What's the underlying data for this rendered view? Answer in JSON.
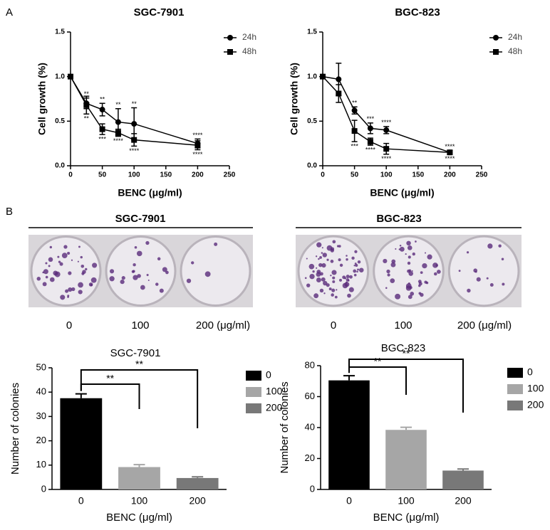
{
  "panels": [
    "A",
    "B"
  ],
  "photos": [
    {
      "title": "SGC-7901",
      "labels": [
        "0",
        "100",
        "200 (μg/ml)"
      ]
    },
    {
      "title": "BGC-823",
      "labels": [
        "0",
        "100",
        "200 (μg/ml)"
      ]
    }
  ],
  "chart_data": [
    {
      "type": "line",
      "title": "SGC-7901",
      "x_label": "BENC (μg/ml)",
      "y_label": "Cell growth (%)",
      "x": [
        0,
        25,
        50,
        75,
        100,
        200
      ],
      "series": [
        {
          "name": "24h",
          "color": "#000000",
          "marker": "circle",
          "values": [
            1.0,
            0.7,
            0.63,
            0.49,
            0.47,
            0.25
          ],
          "errors": [
            0,
            0.06,
            0.07,
            0.15,
            0.18,
            0.05
          ],
          "annotations": [
            null,
            "**",
            "**",
            "**",
            "**",
            "****"
          ]
        },
        {
          "name": "48h",
          "color": "#000000",
          "marker": "square",
          "values": [
            1.0,
            0.68,
            0.41,
            0.37,
            0.29,
            0.23
          ],
          "errors": [
            0,
            0.1,
            0.06,
            0.04,
            0.07,
            0.05
          ],
          "annotations": [
            null,
            "**",
            "***",
            "****",
            "****",
            "****"
          ]
        }
      ],
      "xlim": [
        0,
        250
      ],
      "xticks": [
        0,
        50,
        100,
        150,
        200,
        250
      ],
      "ylim": [
        0,
        1.5
      ],
      "yticks": [
        {
          "value": 0,
          "label": "0.0"
        },
        0.5,
        {
          "value": 1,
          "label": "1.0"
        },
        1.5
      ],
      "legend": "top-right"
    },
    {
      "type": "line",
      "title": "BGC-823",
      "x_label": "BENC (μg/ml)",
      "y_label": "Cell growth (%)",
      "x": [
        0,
        25,
        50,
        75,
        100,
        200
      ],
      "series": [
        {
          "name": "24h",
          "color": "#000000",
          "marker": "circle",
          "values": [
            1.0,
            0.97,
            0.62,
            0.42,
            0.4,
            0.15
          ],
          "errors": [
            0,
            0.18,
            0.04,
            0.06,
            0.04,
            0.02
          ],
          "annotations": [
            null,
            null,
            "**",
            "***",
            "****",
            "****"
          ]
        },
        {
          "name": "48h",
          "color": "#000000",
          "marker": "square",
          "values": [
            1.0,
            0.81,
            0.39,
            0.27,
            0.19,
            0.15
          ],
          "errors": [
            0,
            0.1,
            0.12,
            0.04,
            0.06,
            0.02
          ],
          "annotations": [
            null,
            null,
            "***",
            "****",
            "****",
            "****"
          ]
        }
      ],
      "xlim": [
        0,
        250
      ],
      "xticks": [
        0,
        50,
        100,
        150,
        200,
        250
      ],
      "ylim": [
        0,
        1.5
      ],
      "yticks": [
        {
          "value": 0,
          "label": "0.0"
        },
        0.5,
        {
          "value": 1,
          "label": "1.0"
        },
        1.5
      ],
      "legend": "top-right"
    },
    {
      "type": "bar",
      "title": "SGC-7901",
      "x_label": "BENC (μg/ml)",
      "y_label": "Number of colonies",
      "categories": [
        "0",
        "100",
        "200"
      ],
      "values": [
        37.5,
        9.2,
        4.7
      ],
      "errors": [
        1.8,
        1.0,
        0.5
      ],
      "colors": [
        "#000000",
        "#a6a6a6",
        "#787878"
      ],
      "significance_labels": [
        "**",
        "**"
      ],
      "ylim": [
        0,
        50
      ],
      "yticks": [
        0,
        10,
        20,
        30,
        40,
        50
      ],
      "legend": "right"
    },
    {
      "type": "bar",
      "title": "BGC-823",
      "x_label": "BENC (μg/ml)",
      "y_label": "Number of colonies",
      "categories": [
        "0",
        "100",
        "200"
      ],
      "values": [
        70.5,
        38.5,
        12.2
      ],
      "errors": [
        3.0,
        1.7,
        1.0
      ],
      "colors": [
        "#000000",
        "#a6a6a6",
        "#787878"
      ],
      "significance_labels": [
        "**",
        "**"
      ],
      "ylim": [
        0,
        80
      ],
      "yticks": [
        0,
        20,
        40,
        60,
        80
      ],
      "legend": "right"
    }
  ]
}
